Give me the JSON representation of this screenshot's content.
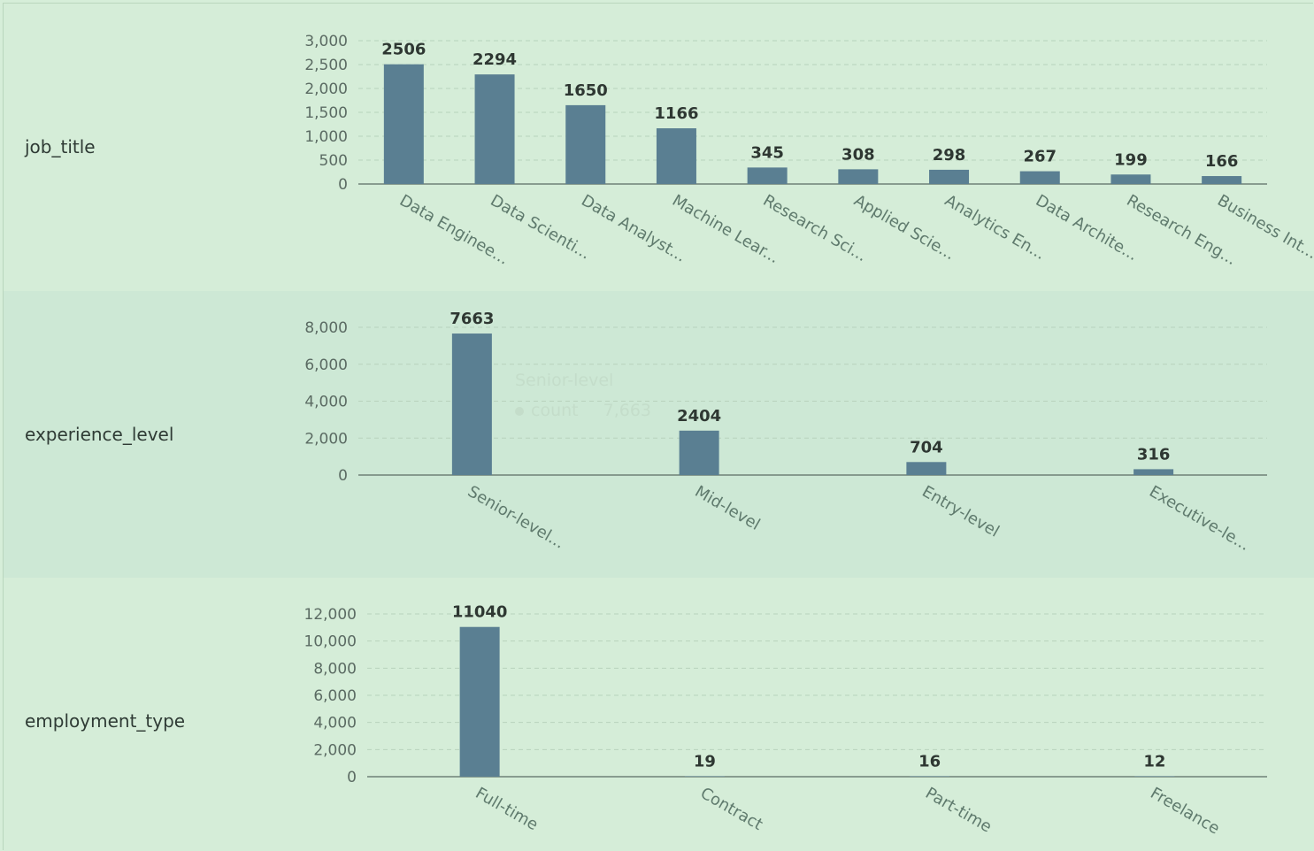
{
  "rows": [
    {
      "label": "job_title"
    },
    {
      "label": "experience_level"
    },
    {
      "label": "employment_type"
    }
  ],
  "chart_data": [
    {
      "type": "bar",
      "categories": [
        "Data Enginee...",
        "Data Scienti...",
        "Data Analyst...",
        "Machine Lear...",
        "Research Sci...",
        "Applied Scie...",
        "Analytics En...",
        "Data Archite...",
        "Research Eng...",
        "Business Int..."
      ],
      "values": [
        2506,
        2294,
        1650,
        1166,
        345,
        308,
        298,
        267,
        199,
        166
      ],
      "yticks": [
        "0",
        "500",
        "1,000",
        "1,500",
        "2,000",
        "2,500",
        "3,000"
      ],
      "ylim": [
        0,
        3000
      ],
      "grid": true,
      "bar_color": "#5a7f92"
    },
    {
      "type": "bar",
      "categories": [
        "Senior-level...",
        "Mid-level",
        "Entry-level",
        "Executive-le..."
      ],
      "values": [
        7663,
        2404,
        704,
        316
      ],
      "yticks": [
        "0",
        "2,000",
        "4,000",
        "6,000",
        "8,000"
      ],
      "ylim": [
        0,
        8000
      ],
      "grid": true,
      "bar_color": "#5a7f92",
      "tooltip": {
        "title": "Senior-level",
        "series": "count",
        "value": "7,663"
      }
    },
    {
      "type": "bar",
      "categories": [
        "Full-time",
        "Contract",
        "Part-time",
        "Freelance"
      ],
      "values": [
        11040,
        19,
        16,
        12
      ],
      "yticks": [
        "0",
        "2,000",
        "4,000",
        "6,000",
        "8,000",
        "10,000",
        "12,000"
      ],
      "ylim": [
        0,
        12000
      ],
      "grid": true,
      "bar_color": "#5a7f92"
    }
  ]
}
